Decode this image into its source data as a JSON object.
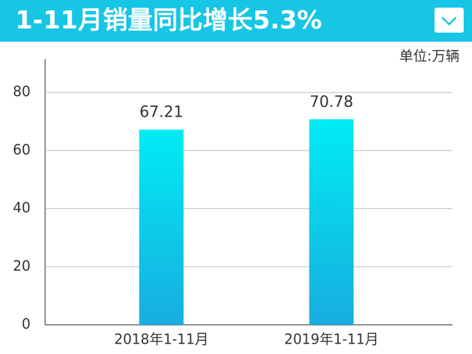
{
  "chart_data": {
    "type": "bar",
    "title": "1-11月销量同比增长5.3%",
    "unit": "单位:万辆",
    "categories": [
      "2018年1-11月",
      "2019年1-11月"
    ],
    "values": [
      67.21,
      70.78
    ],
    "gradient": [
      "#00ecf3",
      "#18ade0"
    ],
    "ylim": [
      0,
      92
    ],
    "yticks": [
      0,
      20,
      40,
      60,
      80
    ],
    "grid": true
  }
}
